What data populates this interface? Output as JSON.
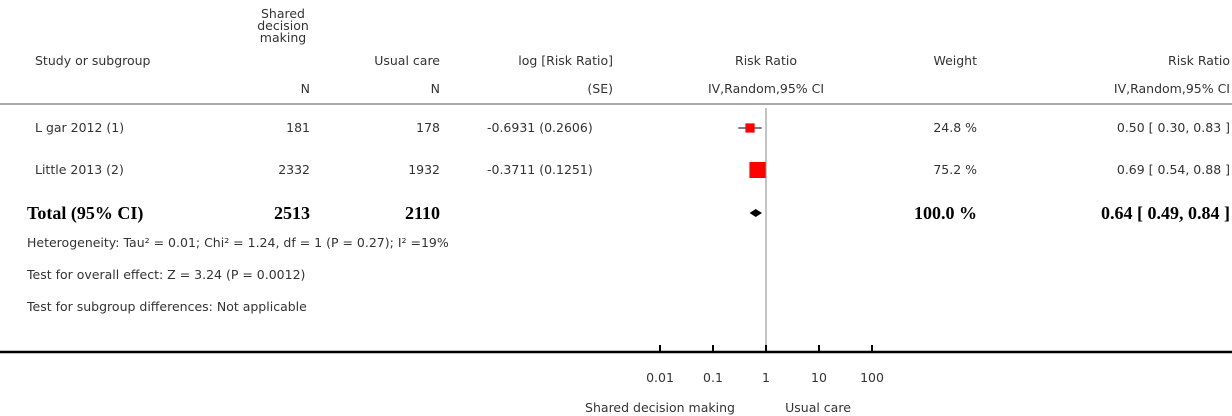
{
  "chart_data": {
    "type": "forest",
    "columns": {
      "study": "Study or subgroup",
      "exp": "Shared decision making",
      "exp_sub": "N",
      "ctrl": "Usual care",
      "ctrl_sub": "N",
      "logrr": "log [Risk Ratio]",
      "logrr_sub": "(SE)",
      "plot": "Risk Ratio",
      "plot_sub": "IV,Random,95% CI",
      "weight": "Weight",
      "rr": "Risk Ratio",
      "rr_sub": "IV,Random,95% CI"
    },
    "studies": [
      {
        "name": "L gar 2012 (1)",
        "exp_n": 181,
        "ctrl_n": 178,
        "logrr_label": "-0.6931 (0.2606)",
        "weight": 24.8,
        "weight_label": "24.8 %",
        "rr": 0.5,
        "ci": [
          0.3,
          0.83
        ],
        "rr_label": "0.50 [ 0.30, 0.83 ]"
      },
      {
        "name": "Little 2013 (2)",
        "exp_n": 2332,
        "ctrl_n": 1932,
        "logrr_label": "-0.3711 (0.1251)",
        "weight": 75.2,
        "weight_label": "75.2 %",
        "rr": 0.69,
        "ci": [
          0.54,
          0.88
        ],
        "rr_label": "0.69 [ 0.54, 0.88 ]"
      }
    ],
    "total": {
      "name": "Total (95% CI)",
      "exp_n": 2513,
      "ctrl_n": 2110,
      "weight_label": "100.0 %",
      "rr": 0.64,
      "ci": [
        0.49,
        0.84
      ],
      "rr_label": "0.64 [ 0.49, 0.84 ]"
    },
    "notes": [
      "Heterogeneity: Tau² = 0.01; Chi² = 1.24, df = 1 (P = 0.27); I² =19%",
      "Test for overall effect: Z = 3.24 (P = 0.0012)",
      "Test for subgroup differences: Not applicable"
    ],
    "xscale": "log",
    "xlim": [
      0.01,
      100
    ],
    "xticks": [
      0.01,
      0.1,
      1,
      10,
      100
    ],
    "xlabel_left": "Shared decision making",
    "xlabel_right": "Usual care",
    "marker_color": "#ff0000",
    "total_color": "#000000"
  }
}
